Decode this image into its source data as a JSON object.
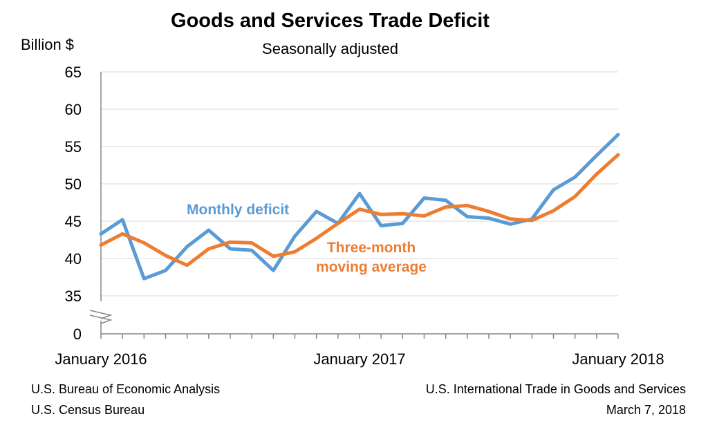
{
  "chart_data": {
    "type": "line",
    "title": "Goods and Services Trade Deficit",
    "subtitle": "Seasonally adjusted",
    "ylabel": "Billion $",
    "xlabel": "",
    "ylim": [
      35,
      65
    ],
    "y_axis_break": "0 to 35",
    "yticks": [
      "65",
      "60",
      "55",
      "50",
      "45",
      "40",
      "35",
      "0"
    ],
    "x_tick_labels": [
      "January 2016",
      "January 2017",
      "January 2018"
    ],
    "x": [
      "2016-01",
      "2016-02",
      "2016-03",
      "2016-04",
      "2016-05",
      "2016-06",
      "2016-07",
      "2016-08",
      "2016-09",
      "2016-10",
      "2016-11",
      "2016-12",
      "2017-01",
      "2017-02",
      "2017-03",
      "2017-04",
      "2017-05",
      "2017-06",
      "2017-07",
      "2017-08",
      "2017-09",
      "2017-10",
      "2017-11",
      "2017-12",
      "2018-01"
    ],
    "grid": "horizontal",
    "series": [
      {
        "name": "Monthly deficit",
        "color": "#5B9BD5",
        "values": [
          43.3,
          45.2,
          37.3,
          38.4,
          41.6,
          43.8,
          41.3,
          41.1,
          38.4,
          43.0,
          46.3,
          44.7,
          48.7,
          44.4,
          44.7,
          48.1,
          47.8,
          45.6,
          45.4,
          44.6,
          45.3,
          49.2,
          50.9,
          53.8,
          56.6
        ]
      },
      {
        "name": "Three-month moving average",
        "label_lines": [
          "Three-month",
          "moving average"
        ],
        "color": "#ED7D31",
        "values": [
          41.8,
          43.3,
          42.1,
          40.4,
          39.1,
          41.3,
          42.2,
          42.1,
          40.3,
          40.9,
          42.7,
          44.7,
          46.6,
          45.9,
          46.0,
          45.7,
          46.9,
          47.1,
          46.3,
          45.3,
          45.1,
          46.4,
          48.3,
          51.3,
          53.9
        ]
      }
    ]
  },
  "footer": {
    "left1": "U.S. Bureau of Economic Analysis",
    "left2": "U.S. Census Bureau",
    "right1": "U.S. International Trade in Goods and Services",
    "right2": "March 7, 2018"
  }
}
